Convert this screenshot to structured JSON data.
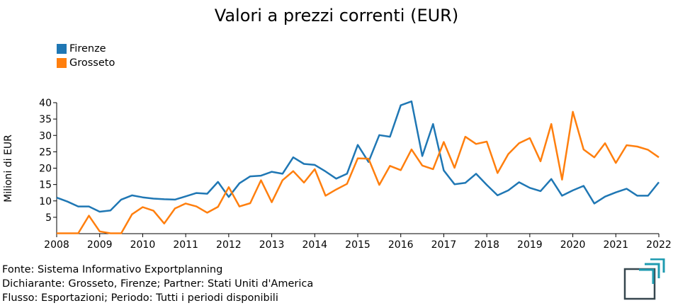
{
  "chart_data": {
    "type": "line",
    "title": "Valori a prezzi correnti (EUR)",
    "ylabel": "Milioni di EUR",
    "xlabel": "",
    "xlim": [
      2008,
      2022
    ],
    "ylim": [
      0,
      40
    ],
    "x_ticks": [
      "2008",
      "2009",
      "2010",
      "2011",
      "2012",
      "2013",
      "2014",
      "2015",
      "2016",
      "2017",
      "2018",
      "2019",
      "2020",
      "2021",
      "2022"
    ],
    "y_ticks": [
      "5",
      "10",
      "15",
      "20",
      "25",
      "30",
      "35",
      "40"
    ],
    "grid": false,
    "legend_position": "top-left",
    "x": [
      2008.0,
      2008.25,
      2008.5,
      2008.75,
      2009.0,
      2009.25,
      2009.5,
      2009.75,
      2010.0,
      2010.25,
      2010.5,
      2010.75,
      2011.0,
      2011.25,
      2011.5,
      2011.75,
      2012.0,
      2012.25,
      2012.5,
      2012.75,
      2013.0,
      2013.25,
      2013.5,
      2013.75,
      2014.0,
      2014.25,
      2014.5,
      2014.75,
      2015.0,
      2015.25,
      2015.5,
      2015.75,
      2016.0,
      2016.25,
      2016.5,
      2016.75,
      2017.0,
      2017.25,
      2017.5,
      2017.75,
      2018.0,
      2018.25,
      2018.5,
      2018.75,
      2019.0,
      2019.25,
      2019.5,
      2019.75,
      2020.0,
      2020.25,
      2020.5,
      2020.75,
      2021.0,
      2021.25,
      2021.5,
      2021.75,
      2022.0
    ],
    "series": [
      {
        "name": "Firenze",
        "color": "#1f77b4",
        "values": [
          11.0,
          9.8,
          8.3,
          8.3,
          6.7,
          7.1,
          10.4,
          11.7,
          11.1,
          10.7,
          10.5,
          10.4,
          11.4,
          12.4,
          12.2,
          15.8,
          11.2,
          15.4,
          17.5,
          17.7,
          18.9,
          18.3,
          23.3,
          21.3,
          21.0,
          19.0,
          16.8,
          18.3,
          27.1,
          21.9,
          30.1,
          29.6,
          39.2,
          40.4,
          23.7,
          33.5,
          19.3,
          15.1,
          15.5,
          18.3,
          14.9,
          11.7,
          13.2,
          15.7,
          14.0,
          13.0,
          16.7,
          11.6,
          13.2,
          14.6,
          9.2,
          11.3,
          12.6,
          13.7,
          11.6,
          11.6,
          15.7
        ]
      },
      {
        "name": "Grosseto",
        "color": "#ff7f0e",
        "values": [
          0.1,
          0.1,
          0.1,
          5.5,
          0.7,
          0.1,
          0.1,
          5.9,
          8.1,
          7.0,
          3.1,
          7.7,
          9.2,
          8.3,
          6.4,
          8.2,
          14.2,
          8.3,
          9.3,
          16.3,
          9.6,
          16.3,
          19.1,
          15.6,
          19.7,
          11.6,
          13.5,
          15.2,
          23.0,
          22.9,
          14.9,
          20.7,
          19.4,
          25.7,
          20.8,
          19.7,
          28.0,
          20.1,
          29.6,
          27.4,
          28.1,
          18.5,
          24.3,
          27.6,
          29.2,
          22.1,
          33.5,
          16.5,
          37.2,
          25.7,
          23.3,
          27.6,
          21.6,
          27.0,
          26.6,
          25.6,
          23.3
        ]
      }
    ]
  },
  "footer": {
    "source": "Fonte: Sistema Informativo Exportplanning",
    "declarant": "Dichiarante: Grosseto, Firenze; Partner: Stati Uniti d'America",
    "flow": "Flusso: Esportazioni; Periodo: Tutti i periodi disponibili"
  },
  "logo": {
    "icon": "exportplanning-logo-icon",
    "color_dark": "#37474f",
    "color_accent": "#1f9bb0"
  }
}
